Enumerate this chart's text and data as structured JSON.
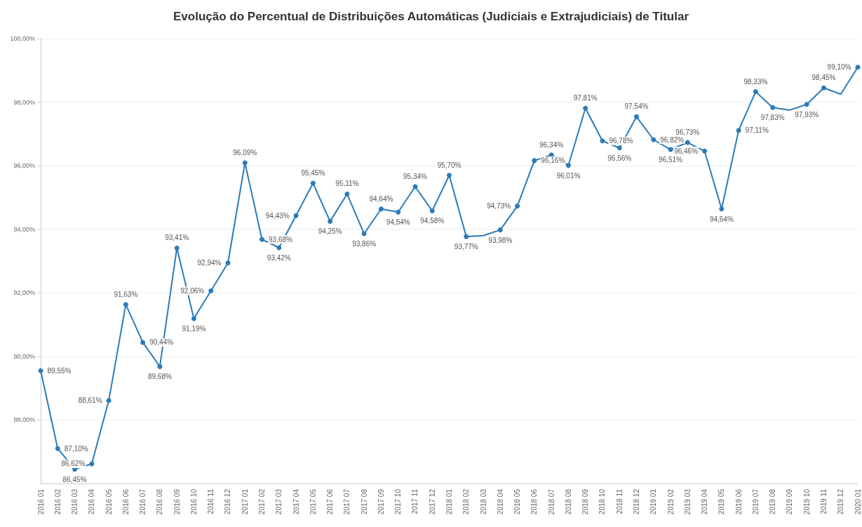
{
  "chart_data": {
    "type": "line",
    "title": "Evolução do Percentual de Distribuições Automáticas (Judiciais e Extrajudiciais) de Titular",
    "categories": [
      "2016 01",
      "2016 02",
      "2016 03",
      "2016 04",
      "2016 05",
      "2016 06",
      "2016 07",
      "2016 08",
      "2016 09",
      "2016 10",
      "2016 11",
      "2016 12",
      "2017 01",
      "2017 02",
      "2017 03",
      "2017 04",
      "2017 05",
      "2017 06",
      "2017 07",
      "2017 08",
      "2017 09",
      "2017 10",
      "2017 11",
      "2017 12",
      "2018 01",
      "2018 02",
      "2018 03",
      "2018 04",
      "2018 05",
      "2018 06",
      "2018 07",
      "2018 08",
      "2018 09",
      "2018 10",
      "2018 11",
      "2018 12",
      "2019 01",
      "2019 02",
      "2019 03",
      "2019 04",
      "2019 05",
      "2019 06",
      "2019 07",
      "2019 08",
      "2019 09",
      "2019 10",
      "2019 11",
      "2019 12",
      "2020 01"
    ],
    "series": [
      {
        "color": "#2b7bba",
        "values": [
          89.55,
          87.1,
          86.45,
          86.62,
          88.61,
          91.63,
          90.44,
          89.68,
          93.41,
          91.19,
          92.06,
          92.94,
          96.09,
          93.68,
          93.42,
          94.43,
          95.45,
          94.25,
          95.11,
          93.86,
          94.64,
          94.54,
          95.34,
          94.58,
          95.7,
          93.77,
          93.8,
          93.98,
          94.73,
          96.16,
          96.34,
          96.01,
          97.81,
          96.78,
          96.56,
          97.54,
          96.82,
          96.51,
          96.73,
          96.46,
          94.64,
          97.11,
          98.33,
          97.83,
          97.75,
          97.93,
          98.45,
          98.25,
          99.1
        ],
        "value_labels": [
          "89,55%",
          "87,10%",
          "86,45%",
          "86,62%",
          "88,61%",
          "91,63%",
          "90,44%",
          "89,68%",
          "93,41%",
          "91,19%",
          "92,06%",
          "92,94%",
          "96,09%",
          "93,68%",
          "93,42%",
          "94,43%",
          "95,45%",
          "94,25%",
          "95,11%",
          "93,86%",
          "94,64%",
          "94,54%",
          "95,34%",
          "94,58%",
          "95,70%",
          "93,77%",
          null,
          "93,98%",
          "94,73%",
          "96,16%",
          "96,34%",
          "96,01%",
          "97,81%",
          "96,78%",
          "96,56%",
          "97,54%",
          "96,82%",
          "96,51%",
          "96,73%",
          "96,46%",
          "94,64%",
          "97,11%",
          "98,33%",
          "97,83%",
          null,
          "97,93%",
          "98,45%",
          null,
          "99,10%"
        ]
      }
    ],
    "ylim": [
      86,
      100
    ],
    "yticks": [
      {
        "value": 88,
        "label": "88,00%"
      },
      {
        "value": 90,
        "label": "90,00%"
      },
      {
        "value": 92,
        "label": "92,00%"
      },
      {
        "value": 94,
        "label": "94,00%"
      },
      {
        "value": 96,
        "label": "96,00%"
      },
      {
        "value": 98,
        "label": "98,00%"
      },
      {
        "value": 100,
        "label": "100,00%"
      }
    ],
    "grid": "y",
    "marker": "circle",
    "line_style": "solid"
  }
}
